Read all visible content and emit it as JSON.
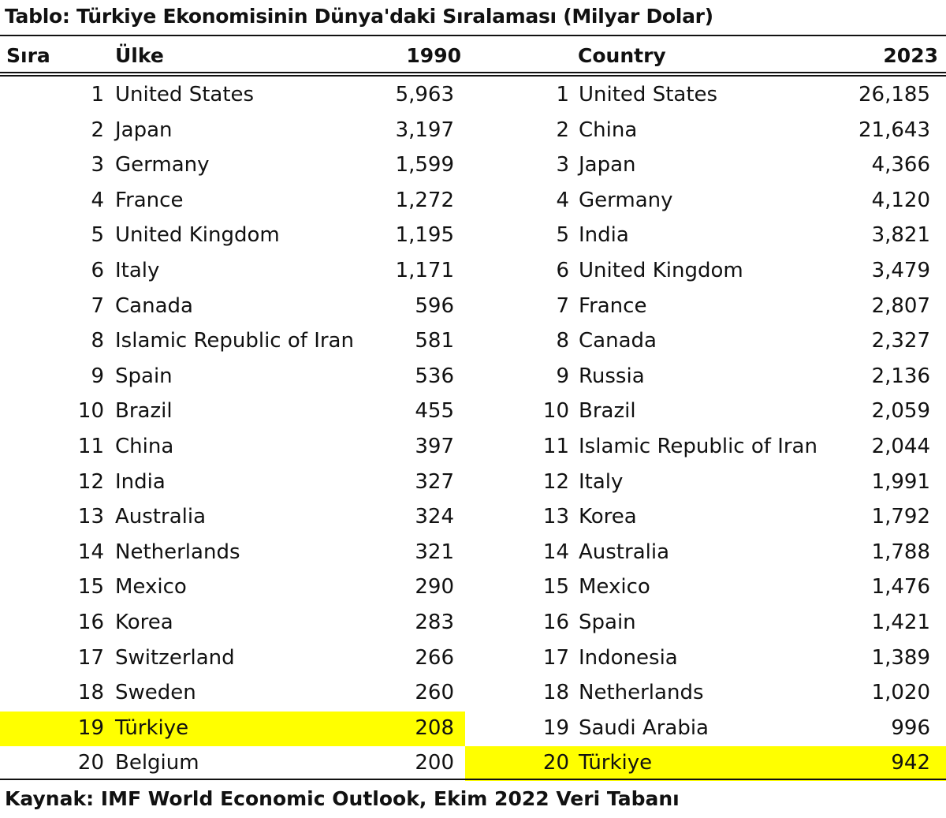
{
  "title": "Tablo: Türkiye Ekonomisinin Dünya'daki Sıralaması (Milyar Dolar)",
  "headers": {
    "rank": "Sıra",
    "country_left": "Ülke",
    "year_left": "1990",
    "country_right": "Country",
    "year_right": "2023"
  },
  "source": "Kaynak: IMF World Economic Outlook, Ekim 2022 Veri Tabanı",
  "highlight_color": "#ffff00",
  "chart_data": {
    "type": "table",
    "title": "Tablo: Türkiye Ekonomisinin Dünya'daki Sıralaması (Milyar Dolar)",
    "columns": [
      "Sıra",
      "Ülke",
      "1990",
      "Country",
      "2023"
    ],
    "highlight": {
      "1990": 19,
      "2023": 20
    },
    "rows_1990": [
      {
        "rank": "1",
        "country": "United States",
        "value": "5,963"
      },
      {
        "rank": "2",
        "country": "Japan",
        "value": "3,197"
      },
      {
        "rank": "3",
        "country": "Germany",
        "value": "1,599"
      },
      {
        "rank": "4",
        "country": "France",
        "value": "1,272"
      },
      {
        "rank": "5",
        "country": "United Kingdom",
        "value": "1,195"
      },
      {
        "rank": "6",
        "country": "Italy",
        "value": "1,171"
      },
      {
        "rank": "7",
        "country": "Canada",
        "value": "596"
      },
      {
        "rank": "8",
        "country": "Islamic Republic of Iran",
        "value": "581"
      },
      {
        "rank": "9",
        "country": "Spain",
        "value": "536"
      },
      {
        "rank": "10",
        "country": "Brazil",
        "value": "455"
      },
      {
        "rank": "11",
        "country": "China",
        "value": "397"
      },
      {
        "rank": "12",
        "country": "India",
        "value": "327"
      },
      {
        "rank": "13",
        "country": "Australia",
        "value": "324"
      },
      {
        "rank": "14",
        "country": "Netherlands",
        "value": "321"
      },
      {
        "rank": "15",
        "country": "Mexico",
        "value": "290"
      },
      {
        "rank": "16",
        "country": "Korea",
        "value": "283"
      },
      {
        "rank": "17",
        "country": "Switzerland",
        "value": "266"
      },
      {
        "rank": "18",
        "country": "Sweden",
        "value": "260"
      },
      {
        "rank": "19",
        "country": "Türkiye",
        "value": "208"
      },
      {
        "rank": "20",
        "country": "Belgium",
        "value": "200"
      }
    ],
    "rows_2023": [
      {
        "rank": "1",
        "country": "United States",
        "value": "26,185"
      },
      {
        "rank": "2",
        "country": "China",
        "value": "21,643"
      },
      {
        "rank": "3",
        "country": "Japan",
        "value": "4,366"
      },
      {
        "rank": "4",
        "country": "Germany",
        "value": "4,120"
      },
      {
        "rank": "5",
        "country": "India",
        "value": "3,821"
      },
      {
        "rank": "6",
        "country": "United Kingdom",
        "value": "3,479"
      },
      {
        "rank": "7",
        "country": "France",
        "value": "2,807"
      },
      {
        "rank": "8",
        "country": "Canada",
        "value": "2,327"
      },
      {
        "rank": "9",
        "country": "Russia",
        "value": "2,136"
      },
      {
        "rank": "10",
        "country": "Brazil",
        "value": "2,059"
      },
      {
        "rank": "11",
        "country": "Islamic Republic of Iran",
        "value": "2,044"
      },
      {
        "rank": "12",
        "country": "Italy",
        "value": "1,991"
      },
      {
        "rank": "13",
        "country": "Korea",
        "value": "1,792"
      },
      {
        "rank": "14",
        "country": "Australia",
        "value": "1,788"
      },
      {
        "rank": "15",
        "country": "Mexico",
        "value": "1,476"
      },
      {
        "rank": "16",
        "country": "Spain",
        "value": "1,421"
      },
      {
        "rank": "17",
        "country": "Indonesia",
        "value": "1,389"
      },
      {
        "rank": "18",
        "country": "Netherlands",
        "value": "1,020"
      },
      {
        "rank": "19",
        "country": "Saudi Arabia",
        "value": "996"
      },
      {
        "rank": "20",
        "country": "Türkiye",
        "value": "942"
      }
    ]
  }
}
